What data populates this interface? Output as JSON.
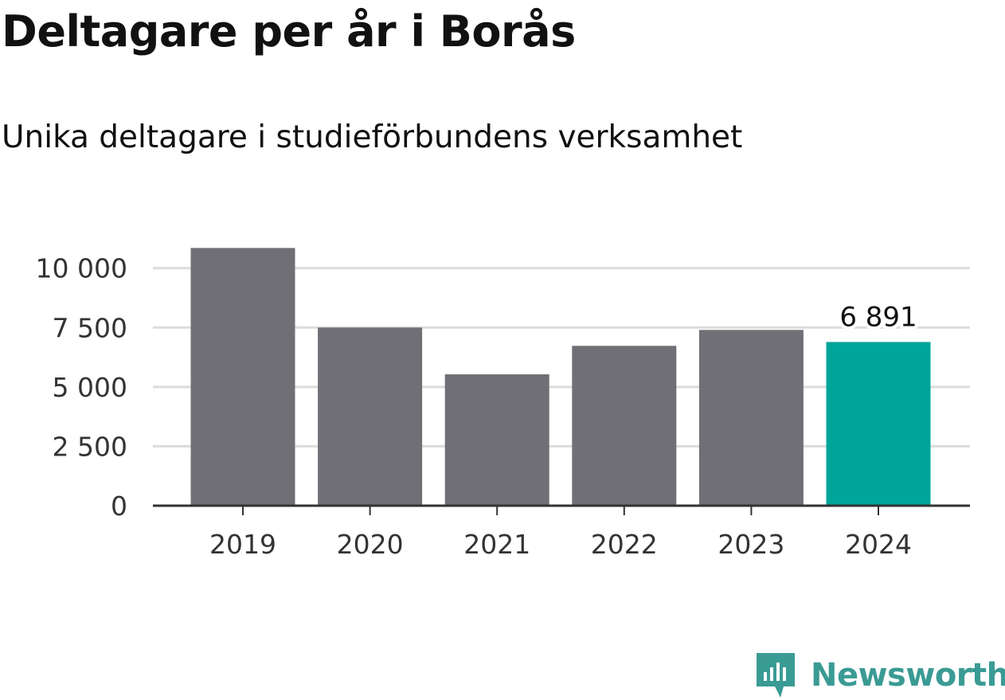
{
  "chart_data": {
    "type": "bar",
    "title": "Deltagare per år i Borås",
    "subtitle": "Unika deltagare i studieförbundens verksamhet",
    "xlabel": "",
    "ylabel": "",
    "categories": [
      "2019",
      "2020",
      "2021",
      "2022",
      "2023",
      "2024"
    ],
    "values": [
      10850,
      7500,
      5530,
      6730,
      7400,
      6891
    ],
    "highlight_index": 5,
    "highlight_label": "6 891",
    "ylim": [
      0,
      11500
    ],
    "yticks": [
      0,
      2500,
      5000,
      7500,
      10000
    ],
    "ytick_labels": [
      "0",
      "2 500",
      "5 000",
      "7 500",
      "10 000"
    ],
    "grid": true,
    "colors": {
      "bar": "#706f75",
      "highlight": "#00a59a",
      "grid": "#dcdcdc",
      "axis": "#333333",
      "text": "#333333"
    }
  },
  "brand": {
    "name": "Newsworthy",
    "icon": "newsworthy-logo-icon",
    "color": "#3a9b94"
  }
}
